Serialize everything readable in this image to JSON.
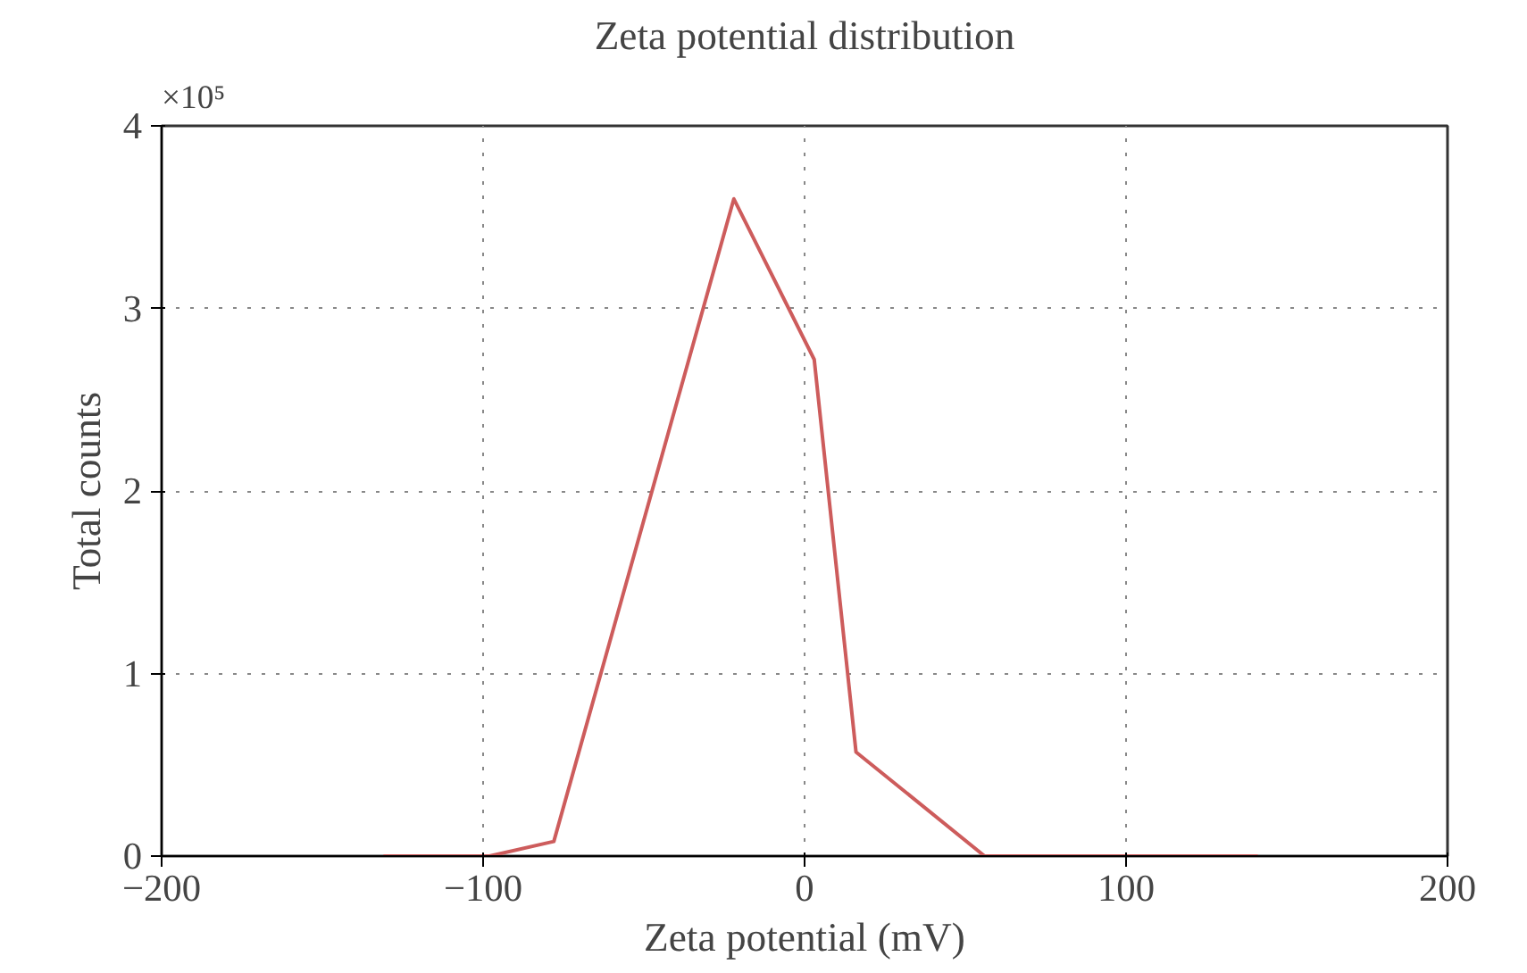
{
  "chart_data": {
    "type": "line",
    "title": "Zeta potential distribution",
    "xlabel": "Zeta potential (mV)",
    "ylabel": "Total counts",
    "annotations": [
      "×10⁵"
    ],
    "x": [
      -131,
      -98,
      -78,
      -22,
      3,
      16,
      56,
      141
    ],
    "series": [
      {
        "color": "#cd5c5c",
        "values": [
          0,
          0,
          0.08,
          3.6,
          2.72,
          0.57,
          0,
          0
        ]
      }
    ],
    "xlim": [
      -200,
      200
    ],
    "xticks": [
      -200,
      -100,
      0,
      100,
      200
    ],
    "ylim": [
      0,
      4
    ],
    "yticks": [
      0,
      1,
      2,
      3,
      4
    ],
    "grid": true,
    "marker": "none",
    "line_style": "solid"
  }
}
